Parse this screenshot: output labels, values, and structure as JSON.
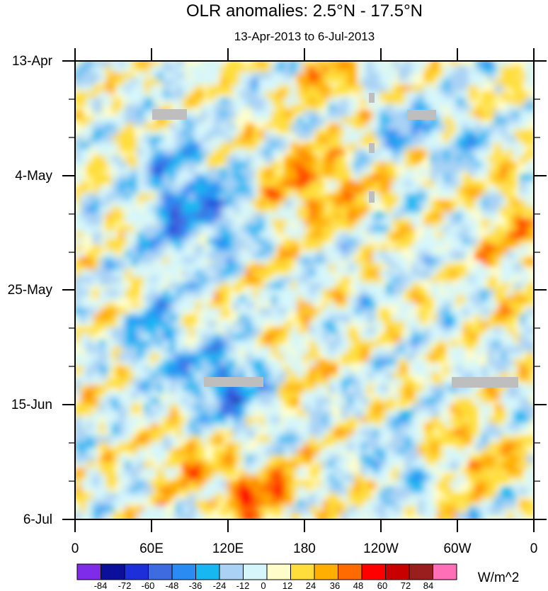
{
  "chart_data": {
    "type": "heatmap",
    "title": "OLR anomalies: 2.5°N - 17.5°N",
    "subtitle": "13-Apr-2013 to 6-Jul-2013",
    "x_tick_labels": [
      "0",
      "60E",
      "120E",
      "180",
      "120W",
      "60W",
      "0"
    ],
    "x_range_deg_east": [
      0,
      360
    ],
    "y_tick_labels": [
      "13-Apr",
      "4-May",
      "25-May",
      "15-Jun",
      "6-Jul"
    ],
    "y_range": [
      "13-Apr-2013",
      "6-Jul-2013"
    ],
    "colorbar": {
      "levels": [
        "-84",
        "-72",
        "-60",
        "-48",
        "-36",
        "-24",
        "-12",
        "0",
        "12",
        "24",
        "36",
        "48",
        "60",
        "72",
        "84"
      ],
      "colors": [
        "#7f2bea",
        "#0c0e9c",
        "#1d2fd8",
        "#3f6be0",
        "#2a8cf3",
        "#17b8f2",
        "#a9d2f5",
        "#d5f6fb",
        "#fffecb",
        "#ffdd3a",
        "#ffae02",
        "#ff6b00",
        "#ff0000",
        "#c80000",
        "#991f1f",
        "#ff6fb8"
      ],
      "units": "W/m^2"
    },
    "missing_color": "#bebebe",
    "description_of_field": "westward-tilted bands of negative (blue) anomalies over the Indian Ocean and western Pacific; positive (orange) anomalies dominate the central Pacific in late April-May and the western Pacific near 150E in early July"
  }
}
